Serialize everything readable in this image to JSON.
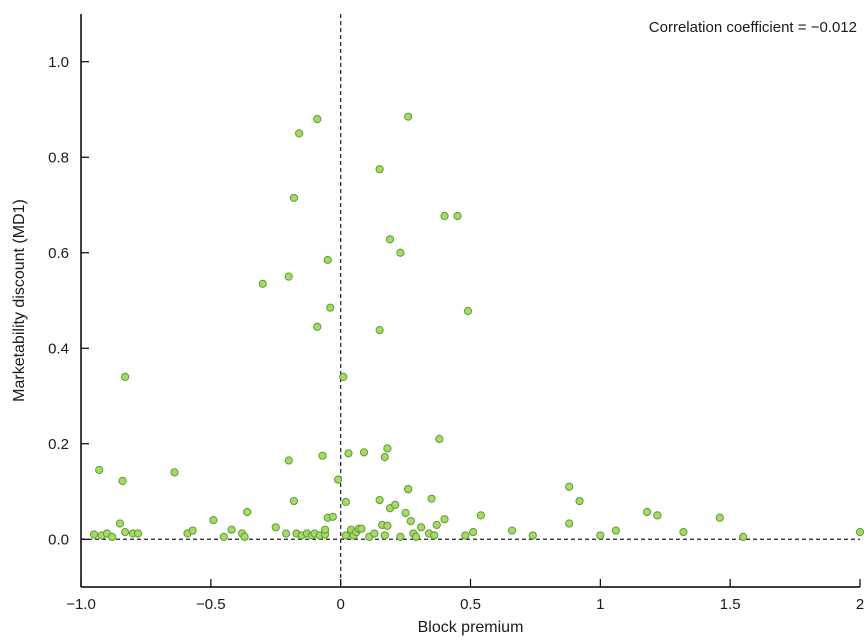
{
  "chart_data": {
    "type": "scatter",
    "title": "",
    "xlabel": "Block premium",
    "ylabel": "Marketability discount (MD1)",
    "xlim": [
      -1.0,
      2.0
    ],
    "ylim": [
      -0.1,
      1.1
    ],
    "x_ticks": [
      -1.0,
      -0.5,
      0,
      0.5,
      1,
      1.5,
      2
    ],
    "x_tick_labels": [
      "−1.0",
      "−0.5",
      "0",
      "0.5",
      "1",
      "1.5",
      "2"
    ],
    "y_ticks": [
      0.0,
      0.2,
      0.4,
      0.6,
      0.8,
      1.0
    ],
    "y_tick_labels": [
      "0.0",
      "0.2",
      "0.4",
      "0.6",
      "0.8",
      "1.0"
    ],
    "grid": false,
    "reference_lines": {
      "x": 0,
      "y": 0
    },
    "annotation": "Correlation coefficient = −0.012",
    "marker_fill": "#a6d96a",
    "marker_stroke": "#5e9e2a",
    "points": [
      [
        -0.95,
        0.01
      ],
      [
        -0.93,
        0.145
      ],
      [
        -0.92,
        0.008
      ],
      [
        -0.9,
        0.012
      ],
      [
        -0.88,
        0.005
      ],
      [
        -0.85,
        0.033
      ],
      [
        -0.84,
        0.122
      ],
      [
        -0.83,
        0.34
      ],
      [
        -0.83,
        0.015
      ],
      [
        -0.8,
        0.012
      ],
      [
        -0.78,
        0.012
      ],
      [
        -0.64,
        0.14
      ],
      [
        -0.59,
        0.012
      ],
      [
        -0.57,
        0.018
      ],
      [
        -0.49,
        0.04
      ],
      [
        -0.45,
        0.005
      ],
      [
        -0.42,
        0.02
      ],
      [
        -0.38,
        0.012
      ],
      [
        -0.37,
        0.005
      ],
      [
        -0.36,
        0.057
      ],
      [
        -0.3,
        0.535
      ],
      [
        -0.25,
        0.025
      ],
      [
        -0.21,
        0.012
      ],
      [
        -0.2,
        0.55
      ],
      [
        -0.2,
        0.165
      ],
      [
        -0.18,
        0.715
      ],
      [
        -0.18,
        0.08
      ],
      [
        -0.17,
        0.012
      ],
      [
        -0.16,
        0.85
      ],
      [
        -0.15,
        0.008
      ],
      [
        -0.13,
        0.012
      ],
      [
        -0.11,
        0.008
      ],
      [
        -0.1,
        0.012
      ],
      [
        -0.09,
        0.88
      ],
      [
        -0.09,
        0.445
      ],
      [
        -0.08,
        0.008
      ],
      [
        -0.07,
        0.175
      ],
      [
        -0.06,
        0.01
      ],
      [
        -0.05,
        0.585
      ],
      [
        -0.05,
        0.045
      ],
      [
        -0.06,
        0.02
      ],
      [
        -0.04,
        0.485
      ],
      [
        -0.03,
        0.047
      ],
      [
        -0.01,
        0.125
      ],
      [
        0.01,
        0.34
      ],
      [
        0.02,
        0.008
      ],
      [
        0.02,
        0.078
      ],
      [
        0.03,
        0.18
      ],
      [
        0.04,
        0.02
      ],
      [
        0.05,
        0.008
      ],
      [
        0.06,
        0.015
      ],
      [
        0.07,
        0.022
      ],
      [
        0.08,
        0.022
      ],
      [
        0.09,
        0.182
      ],
      [
        0.11,
        0.005
      ],
      [
        0.13,
        0.012
      ],
      [
        0.15,
        0.775
      ],
      [
        0.15,
        0.438
      ],
      [
        0.15,
        0.082
      ],
      [
        0.16,
        0.03
      ],
      [
        0.17,
        0.172
      ],
      [
        0.17,
        0.008
      ],
      [
        0.18,
        0.19
      ],
      [
        0.18,
        0.028
      ],
      [
        0.19,
        0.628
      ],
      [
        0.19,
        0.065
      ],
      [
        0.21,
        0.072
      ],
      [
        0.23,
        0.6
      ],
      [
        0.23,
        0.005
      ],
      [
        0.25,
        0.055
      ],
      [
        0.26,
        0.885
      ],
      [
        0.26,
        0.105
      ],
      [
        0.26,
        0.105
      ],
      [
        0.27,
        0.038
      ],
      [
        0.28,
        0.012
      ],
      [
        0.29,
        0.005
      ],
      [
        0.31,
        0.025
      ],
      [
        0.34,
        0.012
      ],
      [
        0.35,
        0.085
      ],
      [
        0.36,
        0.008
      ],
      [
        0.37,
        0.03
      ],
      [
        0.38,
        0.21
      ],
      [
        0.4,
        0.677
      ],
      [
        0.4,
        0.042
      ],
      [
        0.45,
        0.677
      ],
      [
        0.48,
        0.008
      ],
      [
        0.49,
        0.478
      ],
      [
        0.51,
        0.015
      ],
      [
        0.54,
        0.05
      ],
      [
        0.66,
        0.018
      ],
      [
        0.74,
        0.008
      ],
      [
        0.88,
        0.11
      ],
      [
        0.88,
        0.033
      ],
      [
        0.92,
        0.08
      ],
      [
        1.0,
        0.008
      ],
      [
        1.06,
        0.018
      ],
      [
        1.18,
        0.057
      ],
      [
        1.22,
        0.05
      ],
      [
        1.32,
        0.015
      ],
      [
        1.46,
        0.045
      ],
      [
        1.55,
        0.005
      ],
      [
        2.0,
        0.015
      ]
    ]
  }
}
